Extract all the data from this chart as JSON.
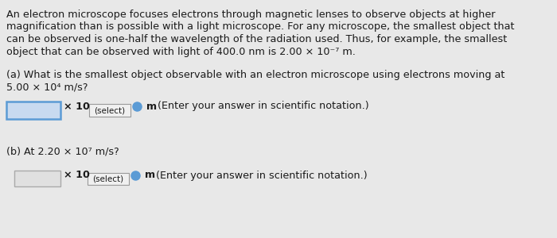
{
  "bg_color": "#e8e8e8",
  "text_color": "#1a1a1a",
  "para_lines": [
    "An electron microscope focuses electrons through magnetic lenses to observe objects at higher",
    "magnification than is possible with a light microscope. For any microscope, the smallest object that",
    "can be observed is one-half the wavelength of the radiation used. Thus, for example, the smallest",
    "object that can be observed with light of 400.0 nm is 2.00 × 10⁻⁷ m."
  ],
  "part_a_line1": "(a) What is the smallest object observable with an electron microscope using electrons moving at",
  "part_a_line2": "5.00 × 10⁴ m/s?",
  "part_b_line": "(b) At 2.20 × 10⁷ m/s?",
  "times10": "× 10",
  "select_label": "(select)",
  "m_label": "m",
  "hint": "(Enter your answer in scientific notation.)",
  "select_box_color": "#5b9bd5",
  "input_box_a_fill": "#c8daf0",
  "input_box_a_edge": "#5b9bd5",
  "input_box_b_fill": "#e0e0e0",
  "input_box_b_edge": "#aaaaaa",
  "select_fill": "#f0f0f0",
  "select_edge": "#999999",
  "font_size_body": 9.2,
  "font_size_select": 7.5
}
